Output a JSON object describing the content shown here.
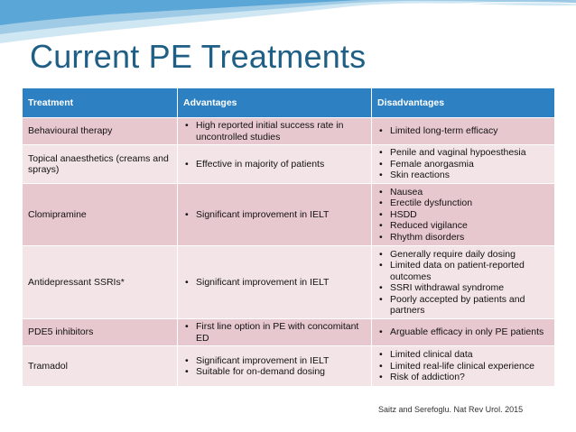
{
  "slide": {
    "title": "Current PE Treatments",
    "citation": "Saitz and Serefoglu. Nat Rev Urol. 2015"
  },
  "table": {
    "headers": [
      "Treatment",
      "Advantages",
      "Disadvantages"
    ],
    "rows": [
      {
        "treatment": "Behavioural therapy",
        "advantages": [
          "High reported initial success rate in uncontrolled studies"
        ],
        "disadvantages": [
          "Limited long-term efficacy"
        ]
      },
      {
        "treatment": "Topical anaesthetics (creams and sprays)",
        "advantages": [
          "Effective in majority of patients"
        ],
        "disadvantages": [
          "Penile and vaginal hypoesthesia",
          "Female anorgasmia",
          "Skin reactions"
        ]
      },
      {
        "treatment": "Clomipramine",
        "advantages": [
          "Significant improvement in IELT"
        ],
        "disadvantages": [
          "Nausea",
          "Erectile dysfunction",
          "HSDD",
          "Reduced vigilance",
          "Rhythm disorders"
        ]
      },
      {
        "treatment": "Antidepressant SSRIs*",
        "advantages": [
          "Significant improvement in IELT"
        ],
        "disadvantages": [
          "Generally require daily dosing",
          "Limited data on patient-reported outcomes",
          "SSRI withdrawal syndrome",
          "Poorly accepted by patients and partners"
        ]
      },
      {
        "treatment": "PDE5 inhibitors",
        "advantages": [
          "First line option in PE with concomitant ED"
        ],
        "disadvantages": [
          "Arguable efficacy in only PE patients"
        ]
      },
      {
        "treatment": "Tramadol",
        "advantages": [
          "Significant improvement in IELT",
          "Suitable for on-demand dosing"
        ],
        "disadvantages": [
          "Limited clinical data",
          "Limited real-life clinical experience",
          "Risk of addiction?"
        ]
      }
    ]
  }
}
